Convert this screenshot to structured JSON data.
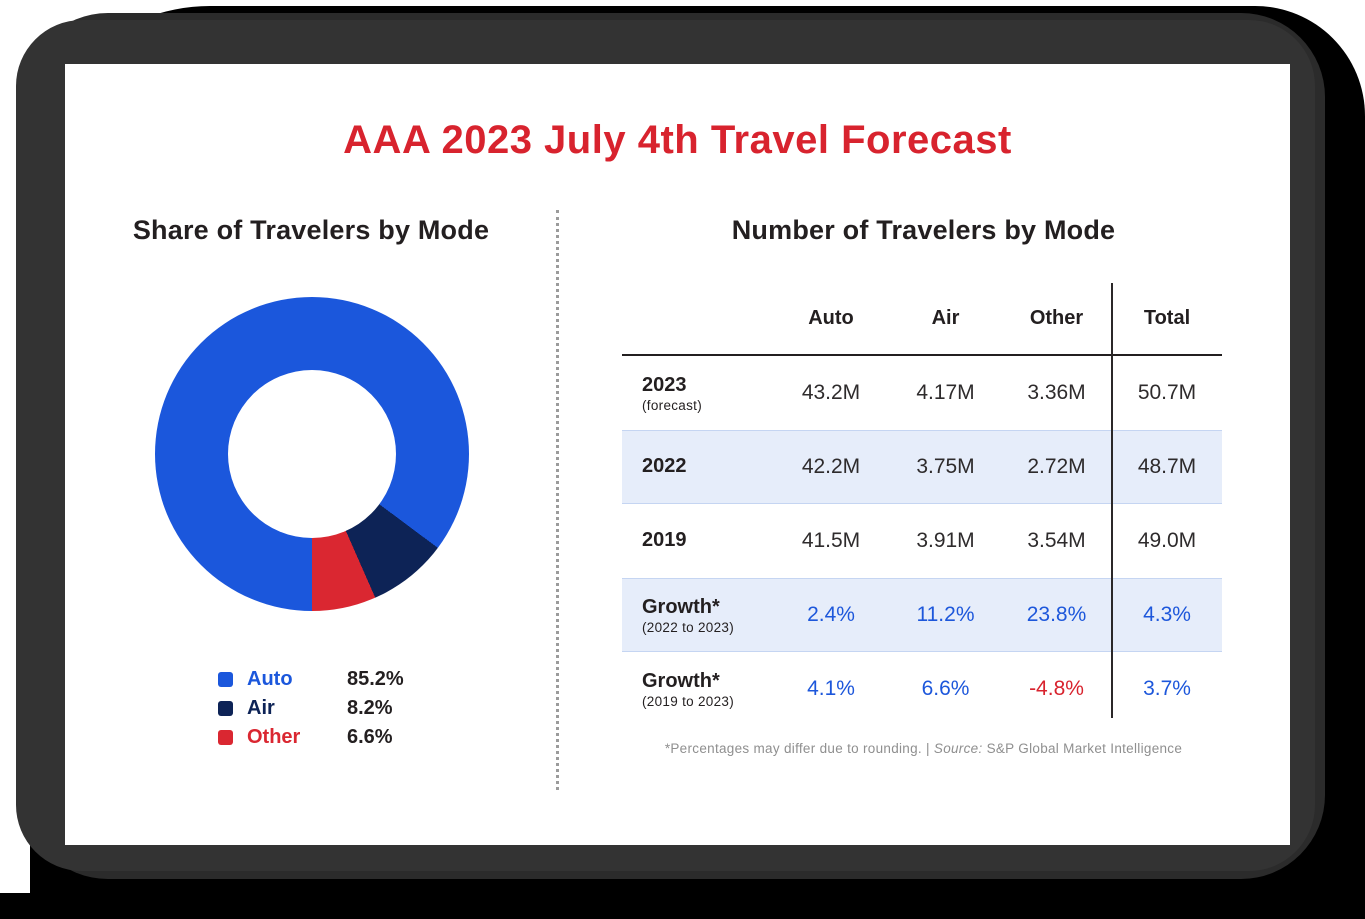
{
  "title": "AAA 2023 July 4th Travel Forecast",
  "donut_section": {
    "heading": "Share of Travelers by Mode"
  },
  "legend": {
    "items": [
      {
        "label": "Auto",
        "value": "85.2%"
      },
      {
        "label": "Air",
        "value": "8.2%"
      },
      {
        "label": "Other",
        "value": "6.6%"
      }
    ]
  },
  "table_section": {
    "heading": "Number of Travelers by Mode",
    "columns": [
      "Auto",
      "Air",
      "Other",
      "Total"
    ],
    "rows": [
      {
        "label": "2023",
        "sublabel": "(forecast)",
        "values": [
          "43.2M",
          "4.17M",
          "3.36M",
          "50.7M"
        ]
      },
      {
        "label": "2022",
        "sublabel": "",
        "values": [
          "42.2M",
          "3.75M",
          "2.72M",
          "48.7M"
        ],
        "highlight": true
      },
      {
        "label": "2019",
        "sublabel": "",
        "values": [
          "41.5M",
          "3.91M",
          "3.54M",
          "49.0M"
        ]
      },
      {
        "label": "Growth*",
        "sublabel": "(2022 to 2023)",
        "values": [
          "2.4%",
          "11.2%",
          "23.8%",
          "4.3%"
        ],
        "highlight": true,
        "value_colors": [
          "blue",
          "blue",
          "blue",
          "blue"
        ]
      },
      {
        "label": "Growth*",
        "sublabel": "(2019 to 2023)",
        "values": [
          "4.1%",
          "6.6%",
          "-4.8%",
          "3.7%"
        ],
        "value_colors": [
          "blue",
          "blue",
          "red",
          "blue"
        ]
      }
    ],
    "footnote": {
      "text": "*Percentages may differ due to rounding. | ",
      "source_label": "Source:",
      "source_text": " S&P Global Market Intelligence"
    }
  },
  "chart_data": {
    "type": "pie",
    "title": "Share of Travelers by Mode",
    "categories": [
      "Auto",
      "Air",
      "Other"
    ],
    "values": [
      85.2,
      8.2,
      6.6
    ],
    "colors": [
      "#1B57DC",
      "#0D2356",
      "#DA2731"
    ],
    "donut": true,
    "inner_radius_pct": 53,
    "start_angle": "bottom",
    "direction": "clockwise",
    "legend_position": "below-left"
  },
  "colors": {
    "title_red": "#D8232E",
    "heading_dark": "#231F20",
    "blue": "#1D57DB",
    "red": "#D8232E",
    "row_highlight": "#E6EDFA",
    "row_highlight_border": "#C5D5F2",
    "table_line_dark": "#2B2829",
    "footnote_gray": "#8F8F8F"
  }
}
